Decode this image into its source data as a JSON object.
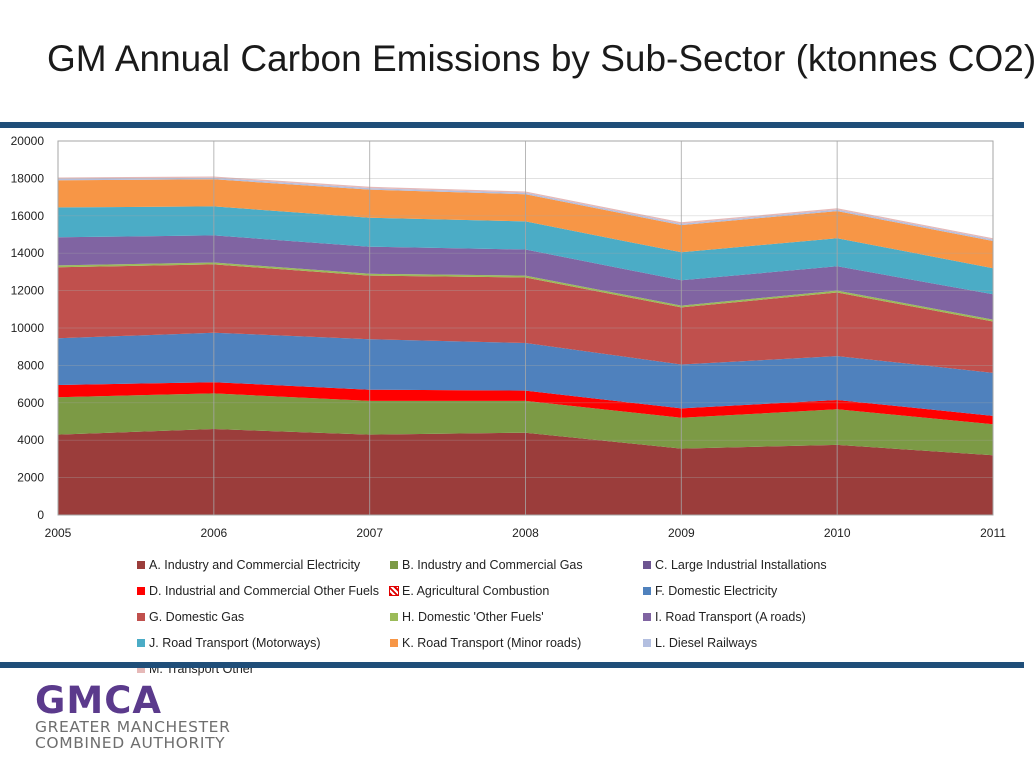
{
  "page": {
    "title": "GM Annual Carbon Emissions by Sub-Sector (ktonnes CO2)",
    "logo": {
      "mark": "GMCA",
      "line1": "GREATER MANCHESTER",
      "line2": "COMBINED AUTHORITY",
      "color": "#5b3a8c"
    },
    "rule_color": "#1f4e79"
  },
  "chart_data": {
    "type": "area",
    "stacked": true,
    "x": [
      2005,
      2006,
      2007,
      2008,
      2009,
      2010,
      2011
    ],
    "xlim": [
      2005,
      2011
    ],
    "ylim": [
      0,
      20000
    ],
    "yticks": [
      0,
      2000,
      4000,
      6000,
      8000,
      10000,
      12000,
      14000,
      16000,
      18000,
      20000
    ],
    "grid": "vertical",
    "legend_position": "bottom",
    "series": [
      {
        "name": "A. Industry and Commercial Electricity",
        "color": "#9b3d3b",
        "values": [
          4300,
          4600,
          4300,
          4400,
          3550,
          3750,
          3200
        ]
      },
      {
        "name": "B. Industry and Commercial Gas",
        "color": "#7c9a45",
        "values": [
          2000,
          1900,
          1800,
          1700,
          1650,
          1900,
          1650
        ]
      },
      {
        "name": "C. Large Industrial Installations",
        "color": "#6d5591",
        "values": [
          0,
          0,
          0,
          0,
          0,
          0,
          0
        ]
      },
      {
        "name": "D. Industrial and Commercial Other Fuels",
        "color": "#ff0000",
        "values": [
          650,
          600,
          600,
          550,
          500,
          500,
          450
        ]
      },
      {
        "name": "E. Agricultural Combustion",
        "color": "#e00000",
        "pattern": "hatched",
        "values": [
          0,
          0,
          0,
          0,
          0,
          0,
          0
        ]
      },
      {
        "name": "F. Domestic Electricity",
        "color": "#4f81bd",
        "values": [
          2500,
          2650,
          2700,
          2550,
          2350,
          2350,
          2300
        ]
      },
      {
        "name": "G. Domestic Gas",
        "color": "#c0504d",
        "values": [
          3800,
          3650,
          3400,
          3500,
          3050,
          3400,
          2750
        ]
      },
      {
        "name": "H. Domestic 'Other Fuels'",
        "color": "#9bbb59",
        "values": [
          100,
          100,
          100,
          100,
          100,
          100,
          100
        ]
      },
      {
        "name": "I. Road Transport (A roads)",
        "color": "#8064a2",
        "values": [
          1500,
          1450,
          1450,
          1400,
          1350,
          1300,
          1350
        ]
      },
      {
        "name": "J. Road Transport (Motorways)",
        "color": "#4bacc6",
        "values": [
          1600,
          1550,
          1550,
          1500,
          1500,
          1500,
          1400
        ]
      },
      {
        "name": "K. Road Transport (Minor roads)",
        "color": "#f79646",
        "values": [
          1450,
          1450,
          1500,
          1450,
          1450,
          1450,
          1450
        ]
      },
      {
        "name": "L. Diesel Railways",
        "color": "#b3bfe0",
        "values": [
          80,
          80,
          80,
          80,
          80,
          80,
          80
        ]
      },
      {
        "name": "M. Transport Other",
        "color": "#e6b9b8",
        "values": [
          70,
          70,
          70,
          70,
          70,
          70,
          70
        ]
      }
    ]
  }
}
